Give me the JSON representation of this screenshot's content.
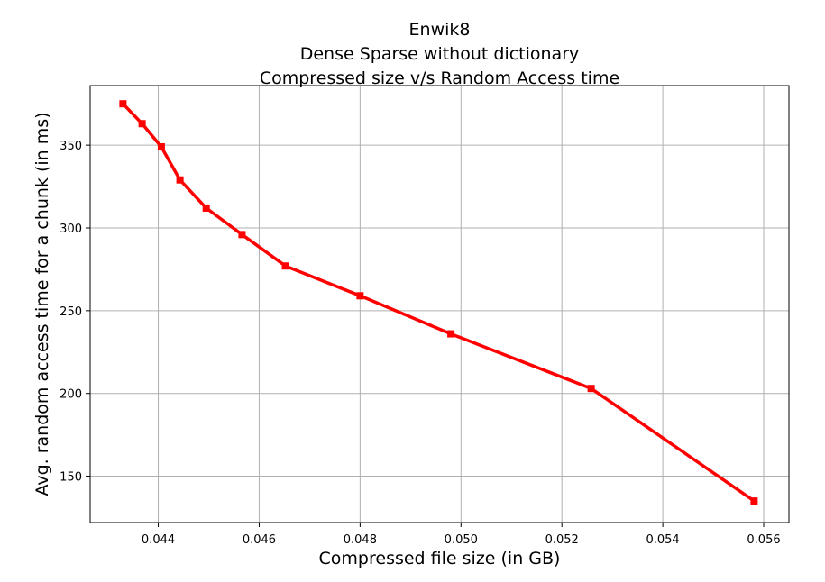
{
  "chart_data": {
    "type": "line",
    "title_lines": [
      "Enwik8",
      "Dense Sparse without dictionary",
      "Compressed size v/s Random Access time"
    ],
    "xlabel": "Compressed file size (in GB)",
    "ylabel": "Avg. random access time for a chunk (in ms)",
    "xlim": [
      0.04265,
      0.0565
    ],
    "ylim": [
      122,
      386
    ],
    "xticks": [
      "0.044",
      "0.046",
      "0.048",
      "0.050",
      "0.052",
      "0.054",
      "0.056"
    ],
    "xtick_values": [
      0.044,
      0.046,
      0.048,
      0.05,
      0.052,
      0.054,
      0.056
    ],
    "yticks": [
      "150",
      "200",
      "250",
      "300",
      "350"
    ],
    "ytick_values": [
      150,
      200,
      250,
      300,
      350
    ],
    "grid": true,
    "series": [
      {
        "color": "#ff0000",
        "marker": "square",
        "x": [
          0.0433,
          0.04368,
          0.04406,
          0.04443,
          0.04495,
          0.04566,
          0.04652,
          0.048,
          0.0498,
          0.05258,
          0.05581
        ],
        "y": [
          375,
          363,
          349,
          329,
          312,
          296,
          277,
          259,
          236,
          203,
          135
        ]
      }
    ]
  }
}
